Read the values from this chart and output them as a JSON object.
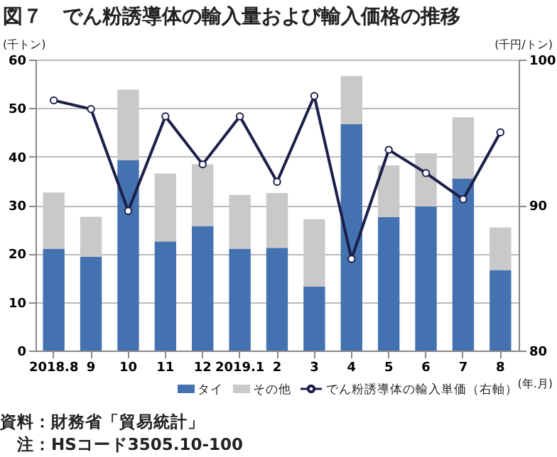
{
  "chart_data": {
    "type": "bar",
    "title": "図７　でん粉誘導体の輸入量および輸入価格の推移",
    "categories": [
      "2018.8",
      "9",
      "10",
      "11",
      "12",
      "2019.1",
      "2",
      "3",
      "4",
      "5",
      "6",
      "7",
      "8"
    ],
    "series": [
      {
        "name": "タイ",
        "color": "#4472b0",
        "values": [
          21.0,
          19.3,
          39.3,
          22.5,
          25.7,
          21.0,
          21.2,
          13.2,
          46.7,
          27.5,
          29.7,
          35.5,
          16.6
        ]
      },
      {
        "name": "その他",
        "color": "#c9c9c9",
        "values": [
          11.6,
          8.3,
          14.5,
          14.0,
          12.7,
          11.1,
          11.3,
          13.9,
          9.9,
          10.7,
          11.0,
          12.6,
          8.8
        ]
      },
      {
        "name": "でん粉誘導体の輸入単価（右軸）",
        "type": "line",
        "axis": "y2",
        "color": "#1c1f4a",
        "marker": "circle",
        "values": [
          97.2,
          96.6,
          89.6,
          96.1,
          92.8,
          96.1,
          91.6,
          97.5,
          86.3,
          93.8,
          92.2,
          90.4,
          95.0
        ]
      }
    ],
    "stacked": true,
    "ylabel": "(千トン)",
    "y2label": "(千円/トン)",
    "xlabel": "(年.月)",
    "ylim": [
      0,
      60
    ],
    "yticks": [
      0,
      10,
      20,
      30,
      40,
      50,
      60
    ],
    "y2lim": [
      80,
      100
    ],
    "y2ticks": [
      80,
      90,
      100
    ],
    "grid": "y",
    "legend": "bottom",
    "annotations": [
      "資料：財務省「貿易統計」",
      "注：HSコード3505.10-100"
    ]
  }
}
